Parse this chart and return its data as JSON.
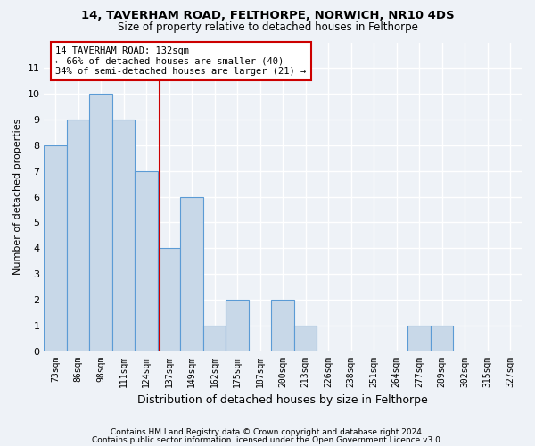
{
  "title1": "14, TAVERHAM ROAD, FELTHORPE, NORWICH, NR10 4DS",
  "title2": "Size of property relative to detached houses in Felthorpe",
  "xlabel": "Distribution of detached houses by size in Felthorpe",
  "ylabel": "Number of detached properties",
  "categories": [
    "73sqm",
    "86sqm",
    "98sqm",
    "111sqm",
    "124sqm",
    "137sqm",
    "149sqm",
    "162sqm",
    "175sqm",
    "187sqm",
    "200sqm",
    "213sqm",
    "226sqm",
    "238sqm",
    "251sqm",
    "264sqm",
    "277sqm",
    "289sqm",
    "302sqm",
    "315sqm",
    "327sqm"
  ],
  "values": [
    8,
    9,
    10,
    9,
    7,
    4,
    6,
    1,
    2,
    0,
    2,
    1,
    0,
    0,
    0,
    0,
    1,
    1,
    0,
    0,
    0
  ],
  "bar_color": "#c8d8e8",
  "bar_edge_color": "#5b9bd5",
  "ylim": [
    0,
    12
  ],
  "yticks": [
    0,
    1,
    2,
    3,
    4,
    5,
    6,
    7,
    8,
    9,
    10,
    11
  ],
  "property_line_x": 4.58,
  "property_line_color": "#cc0000",
  "annotation_text": "14 TAVERHAM ROAD: 132sqm\n← 66% of detached houses are smaller (40)\n34% of semi-detached houses are larger (21) →",
  "annotation_box_color": "#ffffff",
  "annotation_box_edge": "#cc0000",
  "footer1": "Contains HM Land Registry data © Crown copyright and database right 2024.",
  "footer2": "Contains public sector information licensed under the Open Government Licence v3.0.",
  "background_color": "#eef2f7",
  "grid_color": "#ffffff"
}
